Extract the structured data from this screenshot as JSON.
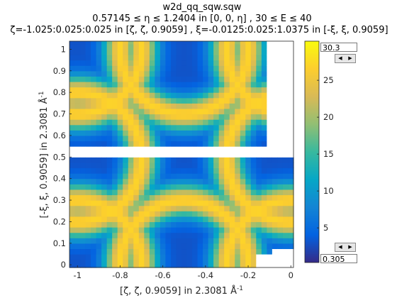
{
  "figure": {
    "title_lines": [
      "w2d_qq_sqw.sqw",
      "0.57145 ≤ η ≤ 1.2404 in [0, 0, η] , 30 ≤ E ≤ 40",
      "ζ=-1.025:0.025:0.025 in [ζ, ζ, 0.9059] , ξ=-0.0125:0.025:1.0375 in [-ξ, ξ, 0.9059]"
    ]
  },
  "chart_data": {
    "type": "heatmap",
    "xlabel": "[ζ, ζ, 0.9059] in 2.3081 Å",
    "xlabel_sup": "-1",
    "ylabel": "[-ξ, ξ, 0.9059] in 2.3081 Å",
    "ylabel_sup": "-1",
    "xlim": [
      -1.0375,
      0.0125
    ],
    "ylim": [
      -0.0125,
      1.0375
    ],
    "x_ticks": [
      -1,
      -0.8,
      -0.6,
      -0.4,
      -0.2,
      0
    ],
    "x_tick_labels": [
      "-1",
      "-0.8",
      "-0.6",
      "-0.4",
      "-0.2",
      "0"
    ],
    "y_ticks": [
      0,
      0.1,
      0.2,
      0.3,
      0.4,
      0.5,
      0.6,
      0.7,
      0.8,
      0.9,
      1
    ],
    "y_tick_labels": [
      "0",
      "0.1",
      "0.2",
      "0.3",
      "0.4",
      "0.5",
      "0.6",
      "0.7",
      "0.8",
      "0.9",
      "1"
    ],
    "x_step": 0.025,
    "y_step": 0.025,
    "x_centers_start": -1.025,
    "x_centers_end": 0.025,
    "y_centers_start": -0.0125,
    "y_centers_end": 1.0375,
    "pattern": {
      "ring_centers": [
        [
          -0.5,
          1.0
        ],
        [
          -0.5,
          0.0
        ],
        [
          -1.0,
          0.5
        ],
        [
          0.0,
          0.5
        ],
        [
          -1.0,
          1.0
        ],
        [
          0.0,
          1.0
        ],
        [
          -1.0,
          0.0
        ],
        [
          0.0,
          0.0
        ]
      ],
      "ring_radius": 0.3,
      "ring_width": 0.075,
      "peak": 27,
      "background": 3,
      "center_dip_value": 8
    },
    "missing_row_y": [
      0.5125,
      0.5375
    ],
    "missing_blocks": [
      {
        "x": [
          -0.1,
          0.025
        ],
        "y": [
          0.5625,
          1.0375
        ]
      },
      {
        "x": [
          -0.0875,
          0.025
        ],
        "y": [
          -0.0125,
          0.0625
        ]
      },
      {
        "x": [
          -0.1625,
          0.025
        ],
        "y": [
          -0.0125,
          0.0375
        ]
      }
    ],
    "colorbar": {
      "colormap": "parula",
      "clim": [
        0.305,
        30.3
      ],
      "ticks": [
        5,
        10,
        15,
        20,
        25
      ],
      "tick_labels": [
        "5",
        "10",
        "15",
        "20",
        "25"
      ]
    },
    "grid": false
  },
  "colorbar_controls": {
    "max_value": "30.3",
    "min_value": "0.305"
  },
  "colors": {
    "parula_stops": [
      "#352a87",
      "#0363e1",
      "#1485d4",
      "#06a7c6",
      "#38b99e",
      "#92bf73",
      "#d9ba56",
      "#fcce2e",
      "#f9fb0e"
    ],
    "missing": "#ffffff"
  }
}
